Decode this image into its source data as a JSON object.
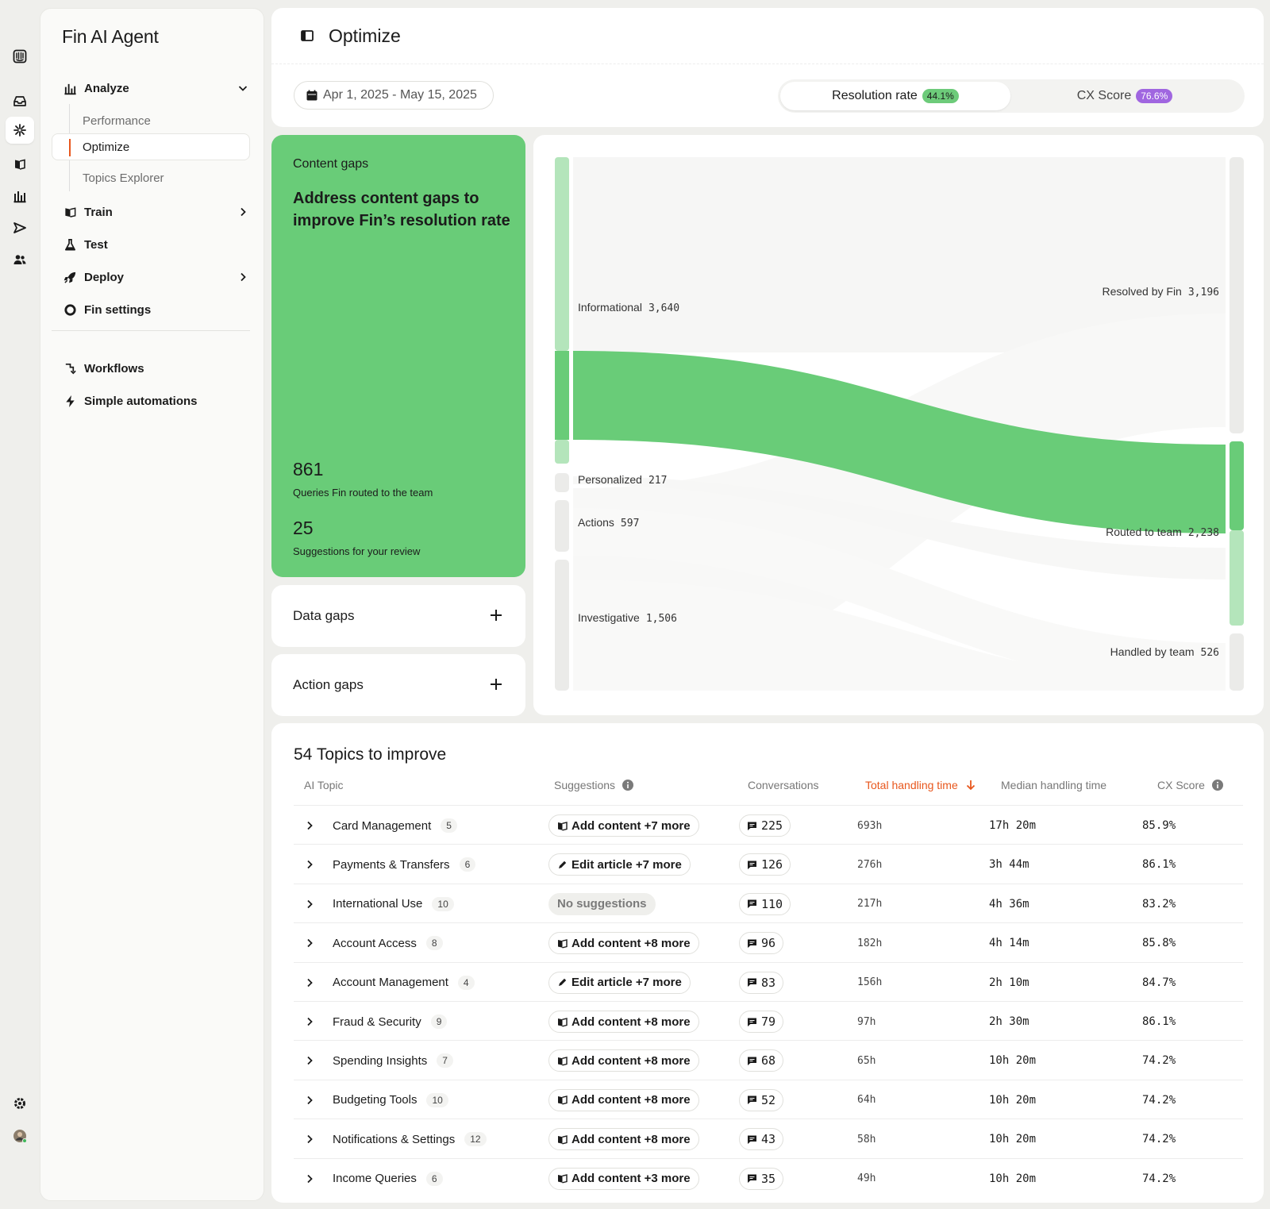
{
  "sidebar": {
    "title": "Fin AI Agent",
    "nav": {
      "analyze": "Analyze",
      "performance": "Performance",
      "optimize": "Optimize",
      "topics_explorer": "Topics Explorer",
      "train": "Train",
      "test": "Test",
      "deploy": "Deploy",
      "fin_settings": "Fin settings",
      "workflows": "Workflows",
      "simple_automations": "Simple automations"
    }
  },
  "header": {
    "title": "Optimize",
    "date_range": "Apr 1, 2025 - May 15, 2025",
    "metrics": {
      "resolution_label": "Resolution rate",
      "resolution_value": "44.1%",
      "cx_label": "CX Score",
      "cx_value": "76.6%"
    }
  },
  "gaps": {
    "content": {
      "label": "Content gaps",
      "headline": "Address content gaps to improve Fin’s resolution rate",
      "routed_num": "861",
      "routed_label": "Queries Fin routed to the team",
      "sugg_num": "25",
      "sugg_label": "Suggestions for your review"
    },
    "data_label": "Data gaps",
    "action_label": "Action gaps"
  },
  "sankey": {
    "left": [
      {
        "name": "Informational",
        "value": "3,640"
      },
      {
        "name": "Personalized",
        "value": "217"
      },
      {
        "name": "Actions",
        "value": "597"
      },
      {
        "name": "Investigative",
        "value": "1,506"
      }
    ],
    "right": [
      {
        "name": "Resolved by Fin",
        "value": "3,196"
      },
      {
        "name": "Routed to team",
        "value": "2,238"
      },
      {
        "name": "Handled by team",
        "value": "526"
      }
    ],
    "highlight_color": "#69cc78"
  },
  "topics": {
    "title": "54 Topics to improve",
    "columns": {
      "topic": "AI Topic",
      "suggestions": "Suggestions",
      "conversations": "Conversations",
      "total": "Total handling time",
      "median": "Median handling time",
      "cx": "CX Score"
    },
    "rows": [
      {
        "name": "Card Management",
        "count": "5",
        "suggestion": "Add content +7 more",
        "stype": "add",
        "conv": "225",
        "total": "693h",
        "median": "17h 20m",
        "cx": "85.9%"
      },
      {
        "name": "Payments & Transfers",
        "count": "6",
        "suggestion": "Edit article +7 more",
        "stype": "edit",
        "conv": "126",
        "total": "276h",
        "median": "3h 44m",
        "cx": "86.1%"
      },
      {
        "name": "International Use",
        "count": "10",
        "suggestion": "No suggestions",
        "stype": "none",
        "conv": "110",
        "total": "217h",
        "median": "4h 36m",
        "cx": "83.2%"
      },
      {
        "name": "Account Access",
        "count": "8",
        "suggestion": "Add content +8 more",
        "stype": "add",
        "conv": "96",
        "total": "182h",
        "median": "4h 14m",
        "cx": "85.8%"
      },
      {
        "name": "Account Management",
        "count": "4",
        "suggestion": "Edit article +7 more",
        "stype": "edit",
        "conv": "83",
        "total": "156h",
        "median": "2h 10m",
        "cx": "84.7%"
      },
      {
        "name": "Fraud & Security",
        "count": "9",
        "suggestion": "Add content +8 more",
        "stype": "add",
        "conv": "79",
        "total": "97h",
        "median": "2h 30m",
        "cx": "86.1%"
      },
      {
        "name": "Spending Insights",
        "count": "7",
        "suggestion": "Add content +8 more",
        "stype": "add",
        "conv": "68",
        "total": "65h",
        "median": "10h 20m",
        "cx": "74.2%"
      },
      {
        "name": "Budgeting Tools",
        "count": "10",
        "suggestion": "Add content +8 more",
        "stype": "add",
        "conv": "52",
        "total": "64h",
        "median": "10h 20m",
        "cx": "74.2%"
      },
      {
        "name": "Notifications & Settings",
        "count": "12",
        "suggestion": "Add content +8 more",
        "stype": "add",
        "conv": "43",
        "total": "58h",
        "median": "10h 20m",
        "cx": "74.2%"
      },
      {
        "name": "Income Queries",
        "count": "6",
        "suggestion": "Add content +3 more",
        "stype": "add",
        "conv": "35",
        "total": "49h",
        "median": "10h 20m",
        "cx": "74.2%"
      }
    ]
  }
}
